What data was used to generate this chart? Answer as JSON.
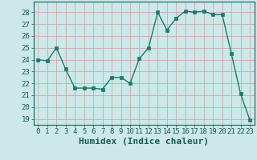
{
  "x": [
    0,
    1,
    2,
    3,
    4,
    5,
    6,
    7,
    8,
    9,
    10,
    11,
    12,
    13,
    14,
    15,
    16,
    17,
    18,
    19,
    20,
    21,
    22,
    23
  ],
  "y": [
    24.0,
    23.9,
    25.0,
    23.2,
    21.6,
    21.6,
    21.6,
    21.5,
    22.5,
    22.5,
    22.0,
    24.1,
    25.0,
    28.0,
    26.5,
    27.5,
    28.1,
    28.0,
    28.1,
    27.8,
    27.8,
    24.5,
    21.1,
    18.9
  ],
  "line_color": "#1a7a6e",
  "marker_color": "#1a7a6e",
  "bg_color": "#cce8e8",
  "grid_color": "#b8d0d0",
  "xlabel": "Humidex (Indice chaleur)",
  "yticks": [
    19,
    20,
    21,
    22,
    23,
    24,
    25,
    26,
    27,
    28
  ],
  "ylim": [
    18.5,
    28.9
  ],
  "xlim": [
    -0.5,
    23.5
  ],
  "tick_fontsize": 6.5,
  "xlabel_fontsize": 8,
  "linewidth": 1.0,
  "markersize": 2.5
}
